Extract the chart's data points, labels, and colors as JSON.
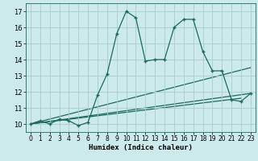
{
  "xlabel": "Humidex (Indice chaleur)",
  "bg_color": "#cceaea",
  "line_color": "#1a6b5a",
  "grid_color": "#aacccc",
  "xlim": [
    -0.5,
    23.5
  ],
  "ylim": [
    9.5,
    17.5
  ],
  "xticks": [
    0,
    1,
    2,
    3,
    4,
    5,
    6,
    7,
    8,
    9,
    10,
    11,
    12,
    13,
    14,
    15,
    16,
    17,
    18,
    19,
    20,
    21,
    22,
    23
  ],
  "yticks": [
    10,
    11,
    12,
    13,
    14,
    15,
    16,
    17
  ],
  "main_x": [
    0,
    1,
    2,
    3,
    4,
    5,
    6,
    7,
    8,
    9,
    10,
    11,
    12,
    13,
    14,
    15,
    16,
    17,
    18,
    19,
    20,
    21,
    22,
    23
  ],
  "main_y": [
    10,
    10.2,
    10,
    10.3,
    10.2,
    9.9,
    10.1,
    11.8,
    13.1,
    15.6,
    17,
    16.6,
    13.9,
    14,
    14,
    16,
    16.5,
    16.5,
    14.5,
    13.3,
    13.3,
    11.5,
    11.4,
    11.9
  ],
  "line2_x": [
    0,
    23
  ],
  "line2_y": [
    10,
    13.5
  ],
  "line3_x": [
    0,
    23
  ],
  "line3_y": [
    10,
    11.9
  ],
  "line4_x": [
    0,
    22
  ],
  "line4_y": [
    10,
    11.6
  ]
}
